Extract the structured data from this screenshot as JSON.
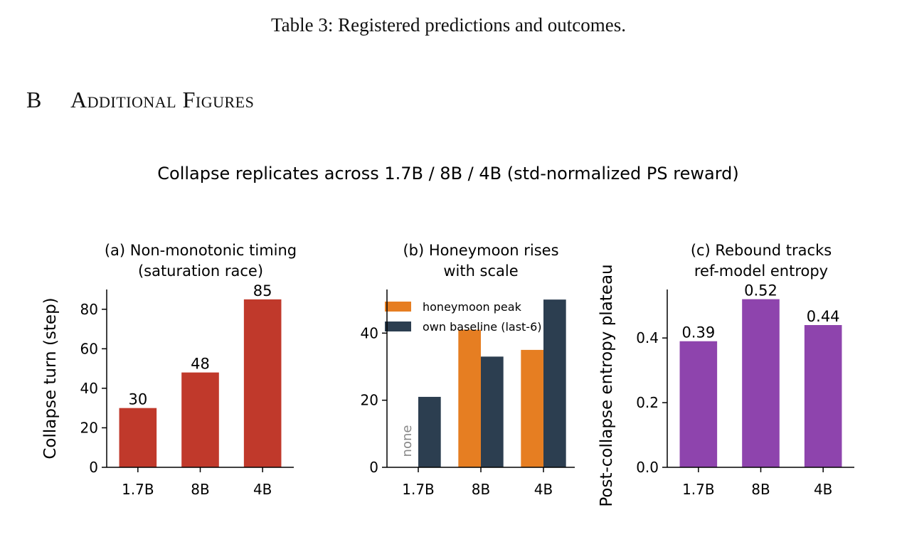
{
  "document": {
    "table_caption": "Table 3: Registered predictions and outcomes.",
    "section": {
      "number": "B",
      "title": "Additional Figures"
    }
  },
  "figure": {
    "suptitle": "Collapse replicates across 1.7B / 8B / 4B (std-normalized PS reward)"
  },
  "chart_data": [
    {
      "type": "bar",
      "title_lines": [
        "(a) Non-monotonic timing",
        "(saturation race)"
      ],
      "ylabel": "Collapse turn (step)",
      "categories": [
        "1.7B",
        "8B",
        "4B"
      ],
      "values": [
        30,
        48,
        85
      ],
      "value_labels": [
        "30",
        "48",
        "85"
      ],
      "ylim": [
        0,
        90
      ],
      "yticks": [
        0,
        20,
        40,
        60,
        80
      ],
      "ytick_labels": [
        "0",
        "20",
        "40",
        "60",
        "80"
      ],
      "color": "#c0392b",
      "grid": false
    },
    {
      "type": "bar",
      "title_lines": [
        "(b) Honeymoon rises",
        "with scale"
      ],
      "ylabel": "",
      "categories": [
        "1.7B",
        "8B",
        "4B"
      ],
      "series": [
        {
          "name": "honeymoon peak",
          "values": [
            null,
            41,
            35
          ],
          "color": "#e67e22"
        },
        {
          "name": "own baseline (last-6)",
          "values": [
            21,
            33,
            50
          ],
          "color": "#2c3e50"
        }
      ],
      "annotation": "none",
      "ylim": [
        0,
        53
      ],
      "yticks": [
        0,
        20,
        40
      ],
      "ytick_labels": [
        "0",
        "20",
        "40"
      ],
      "legend": "upper-left",
      "grid": false
    },
    {
      "type": "bar",
      "title_lines": [
        "(c) Rebound tracks",
        "ref-model entropy"
      ],
      "ylabel": "Post-collapse entropy plateau",
      "categories": [
        "1.7B",
        "8B",
        "4B"
      ],
      "values": [
        0.39,
        0.52,
        0.44
      ],
      "value_labels": [
        "0.39",
        "0.52",
        "0.44"
      ],
      "ylim": [
        0,
        0.55
      ],
      "yticks": [
        0,
        0.2,
        0.4
      ],
      "ytick_labels": [
        "0.0",
        "0.2",
        "0.4"
      ],
      "color": "#8e44ad",
      "grid": false
    }
  ]
}
